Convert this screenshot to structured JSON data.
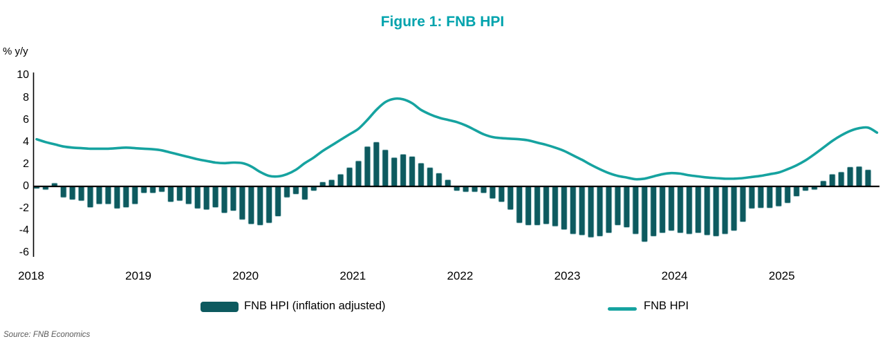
{
  "title": "Figure 1: FNB HPI",
  "y_unit_label": "% y/y",
  "source": "Source: FNB Economics",
  "legend": {
    "bar_label": "FNB HPI (inflation adjusted)",
    "line_label": "FNB HPI"
  },
  "colors": {
    "title": "#00A3AD",
    "bar": "#0D5A5F",
    "bar_edge": "#A9CBCE",
    "line": "#16A3A0",
    "axis": "#000000",
    "source_text": "#595959"
  },
  "chart_data": {
    "type": "combo-bar-line",
    "title": "Figure 1: FNB HPI",
    "ylabel": "% y/y",
    "grid": false,
    "legend_position": "bottom",
    "x": [
      "2018-01",
      "2018-02",
      "2018-03",
      "2018-04",
      "2018-05",
      "2018-06",
      "2018-07",
      "2018-08",
      "2018-09",
      "2018-10",
      "2018-11",
      "2018-12",
      "2019-01",
      "2019-02",
      "2019-03",
      "2019-04",
      "2019-05",
      "2019-06",
      "2019-07",
      "2019-08",
      "2019-09",
      "2019-10",
      "2019-11",
      "2019-12",
      "2020-01",
      "2020-02",
      "2020-03",
      "2020-04",
      "2020-05",
      "2020-06",
      "2020-07",
      "2020-08",
      "2020-09",
      "2020-10",
      "2020-11",
      "2020-12",
      "2021-01",
      "2021-02",
      "2021-03",
      "2021-04",
      "2021-05",
      "2021-06",
      "2021-07",
      "2021-08",
      "2021-09",
      "2021-10",
      "2021-11",
      "2021-12",
      "2022-01",
      "2022-02",
      "2022-03",
      "2022-04",
      "2022-05",
      "2022-06",
      "2022-07",
      "2022-08",
      "2022-09",
      "2022-10",
      "2022-11",
      "2022-12",
      "2023-01",
      "2023-02",
      "2023-03",
      "2023-04",
      "2023-05",
      "2023-06",
      "2023-07",
      "2023-08",
      "2023-09",
      "2023-10",
      "2023-11",
      "2023-12",
      "2024-01",
      "2024-02",
      "2024-03",
      "2024-04",
      "2024-05",
      "2024-06",
      "2024-07",
      "2024-08",
      "2024-09",
      "2024-10",
      "2024-11",
      "2024-12",
      "2025-01",
      "2025-02",
      "2025-03",
      "2025-04",
      "2025-05",
      "2025-06",
      "2025-07",
      "2025-08",
      "2025-09",
      "2025-10",
      "2025-11"
    ],
    "x_axis": {
      "tick_labels": [
        "2018",
        "2019",
        "2020",
        "2021",
        "2022",
        "2023",
        "2024",
        "2025"
      ]
    },
    "y_axis": {
      "ticks": [
        10,
        8,
        6,
        4,
        2,
        0,
        -2,
        -4,
        -6
      ],
      "range": [
        -6,
        10
      ]
    },
    "series": [
      {
        "name": "FNB HPI (inflation adjusted)",
        "type": "bar",
        "unit": "% y/y",
        "values": [
          -0.2,
          -0.3,
          0.3,
          -1.0,
          -1.2,
          -1.3,
          -1.9,
          -1.6,
          -1.6,
          -2.0,
          -1.9,
          -1.6,
          -0.6,
          -0.6,
          -0.5,
          -1.4,
          -1.3,
          -1.6,
          -2.0,
          -2.1,
          -1.9,
          -2.4,
          -2.2,
          -3.0,
          -3.4,
          -3.5,
          -3.3,
          -2.7,
          -1.0,
          -0.7,
          -1.2,
          -0.4,
          0.4,
          0.6,
          1.1,
          1.7,
          2.3,
          3.6,
          4.0,
          3.3,
          2.6,
          2.9,
          2.7,
          2.1,
          1.7,
          1.2,
          0.6,
          -0.4,
          -0.5,
          -0.5,
          -0.6,
          -1.1,
          -1.4,
          -2.1,
          -3.3,
          -3.5,
          -3.5,
          -3.4,
          -3.6,
          -3.9,
          -4.3,
          -4.4,
          -4.6,
          -4.5,
          -4.2,
          -3.5,
          -3.7,
          -4.3,
          -5.0,
          -4.5,
          -4.2,
          -4.0,
          -4.2,
          -4.3,
          -4.2,
          -4.4,
          -4.5,
          -4.3,
          -4.0,
          -3.2,
          -2.0,
          -1.95,
          -1.95,
          -1.8,
          -1.5,
          -0.9,
          -0.4,
          -0.3,
          0.5,
          1.1,
          1.3,
          1.75,
          1.8,
          1.5,
          null
        ]
      },
      {
        "name": "FNB HPI",
        "type": "line",
        "unit": "% y/y",
        "values": [
          4.25,
          4.0,
          3.8,
          3.6,
          3.5,
          3.45,
          3.4,
          3.4,
          3.4,
          3.45,
          3.5,
          3.45,
          3.4,
          3.35,
          3.25,
          3.05,
          2.85,
          2.65,
          2.45,
          2.3,
          2.15,
          2.1,
          2.15,
          2.1,
          1.8,
          1.3,
          0.95,
          0.9,
          1.1,
          1.5,
          2.1,
          2.6,
          3.2,
          3.7,
          4.2,
          4.7,
          5.2,
          6.0,
          6.9,
          7.6,
          7.9,
          7.85,
          7.5,
          6.9,
          6.5,
          6.2,
          6.0,
          5.8,
          5.5,
          5.1,
          4.7,
          4.45,
          4.35,
          4.3,
          4.25,
          4.15,
          3.95,
          3.75,
          3.5,
          3.2,
          2.8,
          2.4,
          1.95,
          1.55,
          1.2,
          0.95,
          0.8,
          0.65,
          0.7,
          0.9,
          1.1,
          1.2,
          1.15,
          1.0,
          0.9,
          0.8,
          0.75,
          0.7,
          0.7,
          0.75,
          0.85,
          0.95,
          1.1,
          1.25,
          1.55,
          1.9,
          2.35,
          2.9,
          3.5,
          4.1,
          4.6,
          5.0,
          5.25,
          5.3,
          4.85
        ]
      }
    ]
  }
}
